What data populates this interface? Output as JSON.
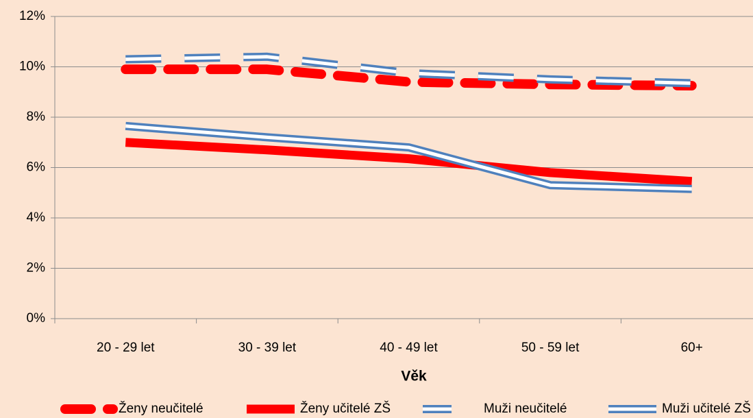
{
  "chart_data": {
    "type": "line",
    "x_label": "Věk",
    "categories": [
      "20 - 29 let",
      "30 - 39 let",
      "40 - 49 let",
      "50 - 59 let",
      "60+"
    ],
    "series": [
      {
        "name": "Ženy neučitelé",
        "color": "#ff0000",
        "style": "dashed",
        "values": [
          9.9,
          9.9,
          9.4,
          9.3,
          9.25
        ]
      },
      {
        "name": "Ženy učitelé ZŠ",
        "color": "#ff0000",
        "style": "solid",
        "values": [
          7.0,
          6.7,
          6.35,
          5.8,
          5.45
        ]
      },
      {
        "name": "Muži neučitelé",
        "color": "#4f81bd",
        "style": "double-dashed",
        "values": [
          10.3,
          10.4,
          9.75,
          9.5,
          9.35
        ]
      },
      {
        "name": "Muži učitelé ZŠ",
        "color": "#4f81bd",
        "style": "double",
        "values": [
          7.65,
          7.2,
          6.8,
          5.3,
          5.15
        ]
      }
    ],
    "ylim": [
      0,
      12
    ],
    "yticks": [
      {
        "value": 0,
        "label": "0%"
      },
      {
        "value": 2,
        "label": "2%"
      },
      {
        "value": 4,
        "label": "4%"
      },
      {
        "value": 6,
        "label": "6%"
      },
      {
        "value": 8,
        "label": "8%"
      },
      {
        "value": 10,
        "label": "10%"
      },
      {
        "value": 12,
        "label": "12%"
      }
    ],
    "grid": true
  }
}
